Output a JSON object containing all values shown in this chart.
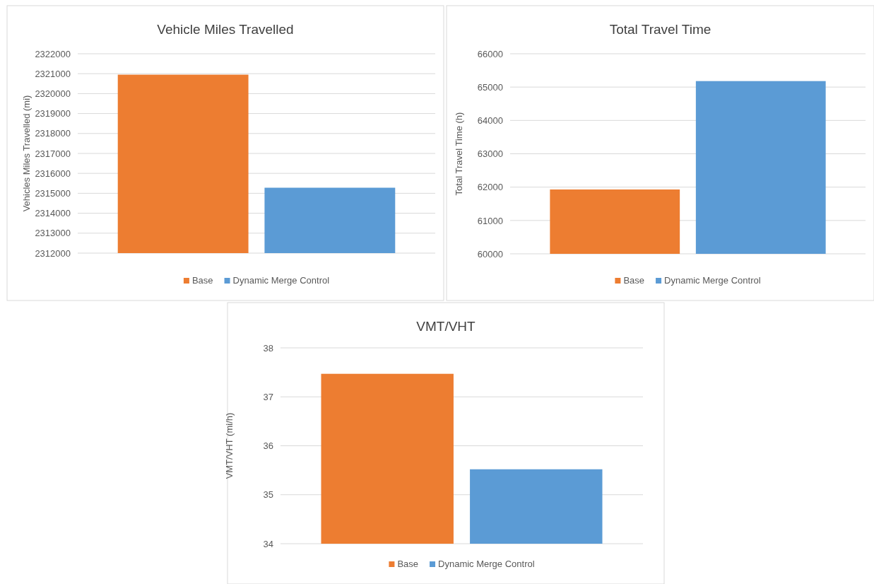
{
  "chart_data": [
    {
      "type": "bar",
      "title": "Vehicle Miles Travelled",
      "ylabel": "Vehicles Miles Travelled (mi)",
      "categories": [
        null
      ],
      "series": [
        {
          "name": "Base",
          "color": "#ed7d31",
          "values": [
            2320950
          ]
        },
        {
          "name": "Dynamic Merge Control",
          "color": "#5b9bd5",
          "values": [
            2315280
          ]
        }
      ],
      "ylim": [
        2312000,
        2322000
      ],
      "yticks": [
        2312000,
        2313000,
        2314000,
        2315000,
        2316000,
        2317000,
        2318000,
        2319000,
        2320000,
        2321000,
        2322000
      ],
      "grid": "y",
      "legend": "bottom"
    },
    {
      "type": "bar",
      "title": "Total Travel Time",
      "ylabel": "Total Travel Time (h)",
      "categories": [
        null
      ],
      "series": [
        {
          "name": "Base",
          "color": "#ed7d31",
          "values": [
            61930
          ]
        },
        {
          "name": "Dynamic Merge Control",
          "color": "#5b9bd5",
          "values": [
            65180
          ]
        }
      ],
      "ylim": [
        60000,
        66000
      ],
      "yticks": [
        60000,
        61000,
        62000,
        63000,
        64000,
        65000,
        66000
      ],
      "grid": "y",
      "legend": "bottom"
    },
    {
      "type": "bar",
      "title": "VMT/VHT",
      "ylabel": "VMT/VHT (mi/h)",
      "categories": [
        null
      ],
      "series": [
        {
          "name": "Base",
          "color": "#ed7d31",
          "values": [
            37.47
          ]
        },
        {
          "name": "Dynamic Merge Control",
          "color": "#5b9bd5",
          "values": [
            35.52
          ]
        }
      ],
      "ylim": [
        34,
        38
      ],
      "yticks": [
        34,
        35,
        36,
        37,
        38
      ],
      "grid": "y",
      "legend": "bottom"
    }
  ]
}
